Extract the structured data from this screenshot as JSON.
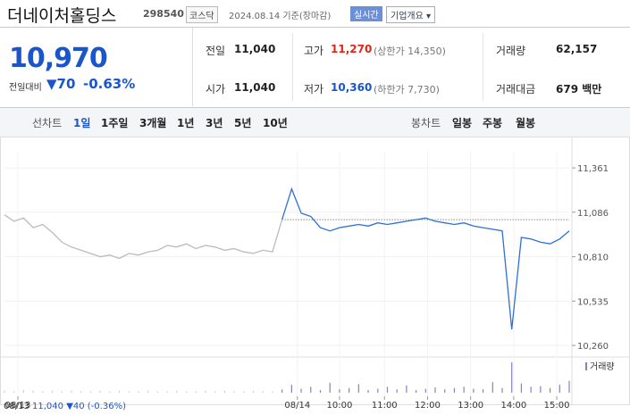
{
  "header": {
    "name": "더네이처홀딩스",
    "code": "298540",
    "market": "코스닥",
    "date": "2024.08.14 기준(장마감)",
    "realtime": "실시간",
    "company_info": "기업개요"
  },
  "price": {
    "current": "10,970",
    "change_label": "전일대비",
    "change": "▼70",
    "change_pct": "-0.63%"
  },
  "stats": [
    {
      "label": "전일",
      "value": "11,040"
    },
    {
      "label": "고가",
      "value": "11,270",
      "note": "(상한가 14,350)"
    },
    {
      "label": "거래량",
      "value": "62,157"
    },
    {
      "label": "시가",
      "value": "11,040"
    },
    {
      "label": "저가",
      "value": "10,360",
      "note": "(하한가 7,730)"
    },
    {
      "label": "거래대금",
      "value": "679 백만"
    }
  ],
  "tabs": {
    "line_label": "선차트",
    "line": [
      "1일",
      "1주일",
      "3개월",
      "1년",
      "3년",
      "5년",
      "10년"
    ],
    "candle_label": "봉차트",
    "candle": [
      "일봉",
      "주봉",
      "월봉"
    ]
  },
  "chart_data": {
    "type": "line",
    "xlim": [
      0,
      59
    ],
    "xticks": [
      {
        "value": 1.4,
        "label": "08/13"
      },
      {
        "value": 30.6,
        "label": "08/14"
      },
      {
        "value": 35,
        "label": "10:00"
      },
      {
        "value": 39.7,
        "label": "11:00"
      },
      {
        "value": 44.2,
        "label": "12:00"
      },
      {
        "value": 48.7,
        "label": "13:00"
      },
      {
        "value": 53.2,
        "label": "14:00"
      },
      {
        "value": 57.7,
        "label": "15:00"
      }
    ],
    "ylim": [
      10205,
      11461
    ],
    "yticks": [
      {
        "value": 11361,
        "label": "11,361"
      },
      {
        "value": 11086,
        "label": "11,086"
      },
      {
        "value": 10810,
        "label": "10,810"
      },
      {
        "value": 10535,
        "label": "10,535"
      },
      {
        "value": 10260,
        "label": "10,260"
      }
    ],
    "baseline": 11040,
    "series": [
      {
        "color": "#bbbbbb",
        "values": [
          11070,
          11030,
          11050,
          10990,
          11010,
          10960,
          10900,
          10870,
          10850,
          10830,
          10810,
          10820,
          10800,
          10830,
          10820,
          10840,
          10850,
          10880,
          10870,
          10890,
          10860,
          10880,
          10870,
          10850,
          10860,
          10840,
          10830,
          10850,
          10840,
          11040,
          null,
          null,
          null,
          null,
          null,
          null,
          null,
          null,
          null,
          null,
          null,
          null,
          null,
          null,
          null,
          null,
          null,
          null,
          null,
          null,
          null,
          null,
          null,
          null,
          null,
          null,
          null,
          null,
          null,
          null
        ]
      },
      {
        "color": "#2f6fd6",
        "values": [
          null,
          null,
          null,
          null,
          null,
          null,
          null,
          null,
          null,
          null,
          null,
          null,
          null,
          null,
          null,
          null,
          null,
          null,
          null,
          null,
          null,
          null,
          null,
          null,
          null,
          null,
          null,
          null,
          null,
          11040,
          11230,
          11080,
          11060,
          10990,
          10970,
          10990,
          11000,
          11010,
          11000,
          11020,
          11010,
          11020,
          11030,
          11040,
          11050,
          11030,
          11020,
          11010,
          11020,
          11000,
          10990,
          10980,
          10970,
          10360,
          10930,
          10920,
          10900,
          10890,
          10920,
          10970
        ]
      }
    ],
    "volume_label": "거래량",
    "volume_color": "#8a7fc4",
    "volume_lim": [
      0,
      5000
    ],
    "volume": [
      300,
      200,
      400,
      300,
      200,
      300,
      200,
      300,
      200,
      200,
      300,
      200,
      300,
      200,
      200,
      300,
      200,
      200,
      300,
      200,
      200,
      300,
      200,
      300,
      200,
      200,
      300,
      200,
      200,
      500,
      1200,
      600,
      900,
      400,
      1500,
      500,
      700,
      1300,
      400,
      600,
      900,
      500,
      1100,
      400,
      600,
      800,
      500,
      700,
      900,
      600,
      500,
      1600,
      700,
      4600,
      1400,
      900,
      1000,
      700,
      1200,
      1800
    ],
    "footer": {
      "date": "08/13",
      "price": "11,040",
      "change": "▼40 (-0.36%)"
    }
  }
}
